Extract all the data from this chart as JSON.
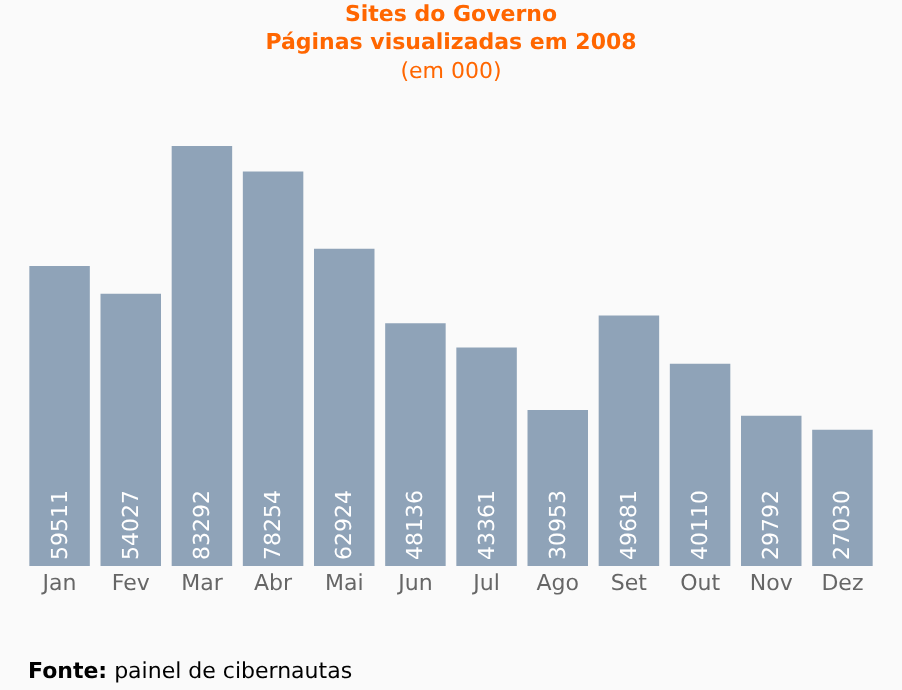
{
  "chart_data": {
    "type": "bar",
    "title": "Sites do Governo\nPáginas visualizadas em 2008",
    "subtitle": "(em 000)",
    "categories": [
      "Jan",
      "Fev",
      "Mar",
      "Abr",
      "Mai",
      "Jun",
      "Jul",
      "Ago",
      "Set",
      "Out",
      "Nov",
      "Dez"
    ],
    "values": [
      59511,
      54027,
      83292,
      78254,
      62924,
      48136,
      43361,
      30953,
      49681,
      40110,
      29792,
      27030
    ],
    "color": "#8fa3b8",
    "data_labels": true,
    "annotations": [
      "Fonte: painel de cibernautas"
    ]
  }
}
